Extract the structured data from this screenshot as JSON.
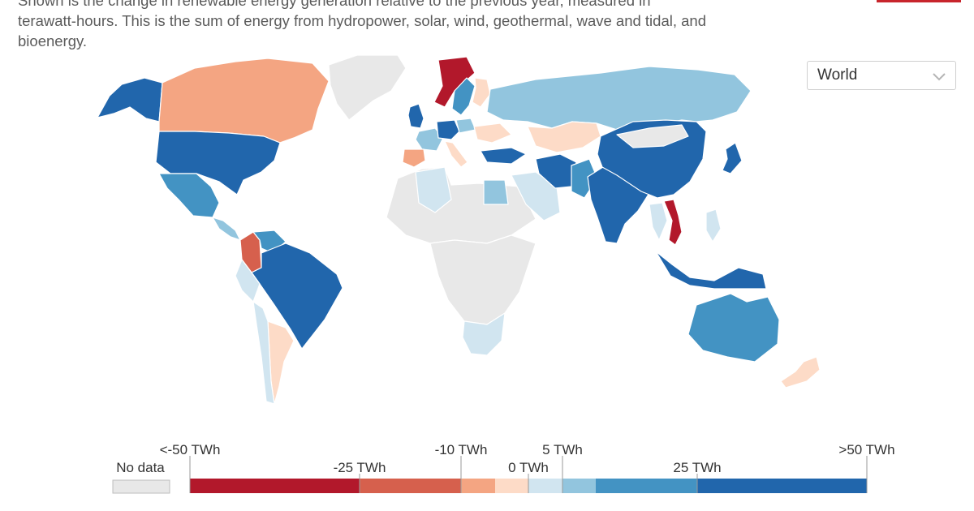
{
  "subtitle": {
    "line0": "Shown is the change in renewable energy generation relative to the previous year, measured in",
    "line1": "terawatt-hours. This is the sum of energy from hydropower, solar, wind, geothermal, wave and tidal, and",
    "line2": "bioenergy."
  },
  "region_select": {
    "value": "World",
    "icon": "chevron-down-icon"
  },
  "colors": {
    "no_data": "#e8e8e8",
    "border": "#ffffff",
    "bins": [
      "#b2182b",
      "#d6604d",
      "#f4a582",
      "#fddbc7",
      "#d1e5f0",
      "#92c5de",
      "#4393c3",
      "#2166ac"
    ]
  },
  "legend": {
    "no_data_label": "No data",
    "top_labels": [
      "<-50 TWh",
      "-10 TWh",
      "5 TWh",
      ">50 TWh"
    ],
    "bottom_labels": [
      "-25 TWh",
      "0 TWh",
      "25 TWh"
    ],
    "bins": [
      {
        "min": -50,
        "max": -25,
        "color": "#b2182b"
      },
      {
        "min": -25,
        "max": -10,
        "color": "#d6604d"
      },
      {
        "min": -10,
        "max": -5,
        "color": "#f4a582"
      },
      {
        "min": -5,
        "max": 0,
        "color": "#fddbc7"
      },
      {
        "min": 0,
        "max": 5,
        "color": "#d1e5f0"
      },
      {
        "min": 5,
        "max": 10,
        "color": "#92c5de"
      },
      {
        "min": 10,
        "max": 25,
        "color": "#4393c3"
      },
      {
        "min": 25,
        "max": 50,
        "color": "#2166ac"
      }
    ]
  },
  "regions": [
    {
      "name": "Alaska",
      "bin": 7
    },
    {
      "name": "Canada",
      "bin": 2
    },
    {
      "name": "Greenland",
      "bin": -1
    },
    {
      "name": "United States",
      "bin": 7
    },
    {
      "name": "Mexico",
      "bin": 6
    },
    {
      "name": "Central America",
      "bin": 5
    },
    {
      "name": "Colombia",
      "bin": 1
    },
    {
      "name": "Venezuela",
      "bin": 6
    },
    {
      "name": "Brazil",
      "bin": 7
    },
    {
      "name": "Peru",
      "bin": 4
    },
    {
      "name": "Argentina",
      "bin": 3
    },
    {
      "name": "Chile",
      "bin": 4
    },
    {
      "name": "Norway",
      "bin": 0
    },
    {
      "name": "Sweden",
      "bin": 6
    },
    {
      "name": "Finland",
      "bin": 3
    },
    {
      "name": "United Kingdom",
      "bin": 7
    },
    {
      "name": "France",
      "bin": 5
    },
    {
      "name": "Germany",
      "bin": 7
    },
    {
      "name": "Spain",
      "bin": 2
    },
    {
      "name": "Italy",
      "bin": 3
    },
    {
      "name": "Poland",
      "bin": 5
    },
    {
      "name": "Ukraine",
      "bin": 3
    },
    {
      "name": "Turkey",
      "bin": 7
    },
    {
      "name": "Russia",
      "bin": 5
    },
    {
      "name": "Kazakhstan",
      "bin": 3
    },
    {
      "name": "North Africa",
      "bin": -1
    },
    {
      "name": "Algeria",
      "bin": 4
    },
    {
      "name": "Egypt",
      "bin": 5
    },
    {
      "name": "Saudi Arabia",
      "bin": 4
    },
    {
      "name": "Iran",
      "bin": 7
    },
    {
      "name": "Pakistan",
      "bin": 6
    },
    {
      "name": "India",
      "bin": 7
    },
    {
      "name": "China",
      "bin": 7
    },
    {
      "name": "Mongolia",
      "bin": -1
    },
    {
      "name": "Japan",
      "bin": 7
    },
    {
      "name": "Vietnam",
      "bin": 0
    },
    {
      "name": "Thailand",
      "bin": 4
    },
    {
      "name": "Indonesia",
      "bin": 7
    },
    {
      "name": "Philippines",
      "bin": 4
    },
    {
      "name": "Central Africa",
      "bin": -1
    },
    {
      "name": "Southern Africa",
      "bin": 4
    },
    {
      "name": "Australia",
      "bin": 6
    },
    {
      "name": "New Zealand",
      "bin": 3
    }
  ]
}
